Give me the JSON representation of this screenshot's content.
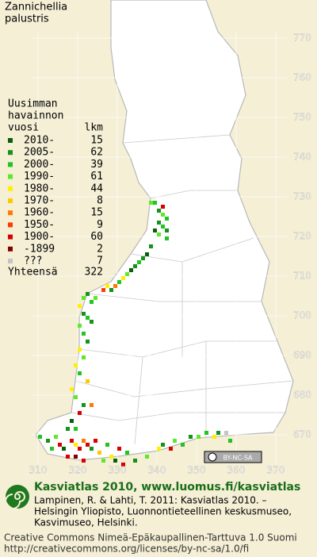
{
  "title": [
    "Zannichellia",
    "palustris"
  ],
  "map": {
    "xticks": [
      310,
      320,
      330,
      340,
      350,
      360,
      370
    ],
    "yticks": [
      770,
      760,
      750,
      740,
      730,
      720,
      710,
      700,
      690,
      680,
      670
    ],
    "squares": [
      [
        338,
        729,
        3
      ],
      [
        339,
        729,
        2
      ],
      [
        341,
        728,
        8
      ],
      [
        340,
        727,
        1
      ],
      [
        341,
        726,
        3
      ],
      [
        342,
        725,
        2
      ],
      [
        340,
        724,
        1
      ],
      [
        341,
        723,
        2
      ],
      [
        342,
        722,
        1
      ],
      [
        339,
        722,
        0
      ],
      [
        340,
        721,
        3
      ],
      [
        342,
        720,
        2
      ],
      [
        338,
        718,
        1
      ],
      [
        337,
        716,
        0
      ],
      [
        336,
        715,
        1
      ],
      [
        335,
        714,
        2
      ],
      [
        334,
        713,
        1
      ],
      [
        333,
        712,
        0
      ],
      [
        332,
        711,
        3
      ],
      [
        331,
        710,
        4
      ],
      [
        330,
        709,
        2
      ],
      [
        329,
        708,
        6
      ],
      [
        328,
        707,
        1
      ],
      [
        327,
        708,
        4
      ],
      [
        326,
        707,
        7
      ],
      [
        321,
        705,
        3
      ],
      [
        322,
        706,
        1
      ],
      [
        323,
        704,
        2
      ],
      [
        324,
        705,
        3
      ],
      [
        320,
        703,
        4
      ],
      [
        321,
        701,
        1
      ],
      [
        322,
        700,
        2
      ],
      [
        323,
        699,
        1
      ],
      [
        320,
        698,
        3
      ],
      [
        321,
        696,
        2
      ],
      [
        322,
        694,
        1
      ],
      [
        320,
        692,
        4
      ],
      [
        321,
        690,
        3
      ],
      [
        319,
        688,
        4
      ],
      [
        320,
        686,
        2
      ],
      [
        322,
        684,
        5
      ],
      [
        318,
        682,
        4
      ],
      [
        319,
        680,
        3
      ],
      [
        321,
        678,
        1
      ],
      [
        320,
        676,
        8
      ],
      [
        323,
        678,
        6
      ],
      [
        318,
        674,
        0
      ],
      [
        317,
        672,
        1
      ],
      [
        319,
        672,
        2
      ],
      [
        310,
        670,
        2
      ],
      [
        312,
        669,
        1
      ],
      [
        314,
        670,
        3
      ],
      [
        315,
        668,
        8
      ],
      [
        316,
        667,
        0
      ],
      [
        318,
        669,
        8
      ],
      [
        319,
        668,
        4
      ],
      [
        320,
        667,
        8
      ],
      [
        321,
        669,
        6
      ],
      [
        322,
        668,
        8
      ],
      [
        323,
        667,
        1
      ],
      [
        324,
        669,
        8
      ],
      [
        313,
        667,
        2
      ],
      [
        317,
        665,
        8
      ],
      [
        319,
        665,
        9
      ],
      [
        321,
        664,
        8
      ],
      [
        325,
        666,
        5
      ],
      [
        327,
        668,
        2
      ],
      [
        328,
        665,
        4
      ],
      [
        326,
        664,
        3
      ],
      [
        330,
        667,
        8
      ],
      [
        329,
        664,
        0
      ],
      [
        331,
        663,
        8
      ],
      [
        340,
        667,
        4
      ],
      [
        341,
        668,
        1
      ],
      [
        343,
        667,
        8
      ],
      [
        344,
        669,
        3
      ],
      [
        346,
        668,
        2
      ],
      [
        348,
        670,
        1
      ],
      [
        350,
        670,
        3
      ],
      [
        352,
        671,
        2
      ],
      [
        354,
        670,
        4
      ],
      [
        355,
        671,
        1
      ],
      [
        357,
        671,
        10
      ],
      [
        358,
        669,
        2
      ],
      [
        337,
        665,
        3
      ],
      [
        334,
        664,
        1
      ],
      [
        332,
        666,
        2
      ]
    ]
  },
  "legend": {
    "header": [
      "Uusimman",
      "havainnon",
      "vuosi"
    ],
    "count_header": "lkm",
    "rows": [
      {
        "label": "2010-",
        "count": 15,
        "color": "#0b5e0b"
      },
      {
        "label": "2005-",
        "count": 62,
        "color": "#15931a"
      },
      {
        "label": "2000-",
        "count": 39,
        "color": "#22c422"
      },
      {
        "label": "1990-",
        "count": 61,
        "color": "#5fe82a"
      },
      {
        "label": "1980-",
        "count": 44,
        "color": "#fff000"
      },
      {
        "label": "1970-",
        "count": 8,
        "color": "#ffc800"
      },
      {
        "label": "1960-",
        "count": 15,
        "color": "#ff7a00"
      },
      {
        "label": "1950-",
        "count": 9,
        "color": "#ff3c00"
      },
      {
        "label": "1900-",
        "count": 60,
        "color": "#d80000"
      },
      {
        "label": "-1899",
        "count": 2,
        "color": "#820000"
      },
      {
        "label": "???",
        "count": 7,
        "color": "#c4c4c4"
      }
    ],
    "total_label": "Yhteensä",
    "total": 322
  },
  "license_badge": "BY-NC-SA",
  "footer": {
    "site": "Kasviatlas 2010, www.luomus.fi/kasviatlas",
    "citation": [
      "Lampinen, R. & Lahti, T. 2011: Kasviatlas 2010. –",
      "Helsingin Yliopisto, Luonnontieteellinen keskusmuseo,",
      "Kasvimuseo, Helsinki."
    ],
    "license": [
      "Creative Commons Nimeä-Epäkaupallinen-Tarttuva 1.0 Suomi",
      "http://creativecommons.org/licenses/by-nc-sa/1.0/fi"
    ]
  }
}
